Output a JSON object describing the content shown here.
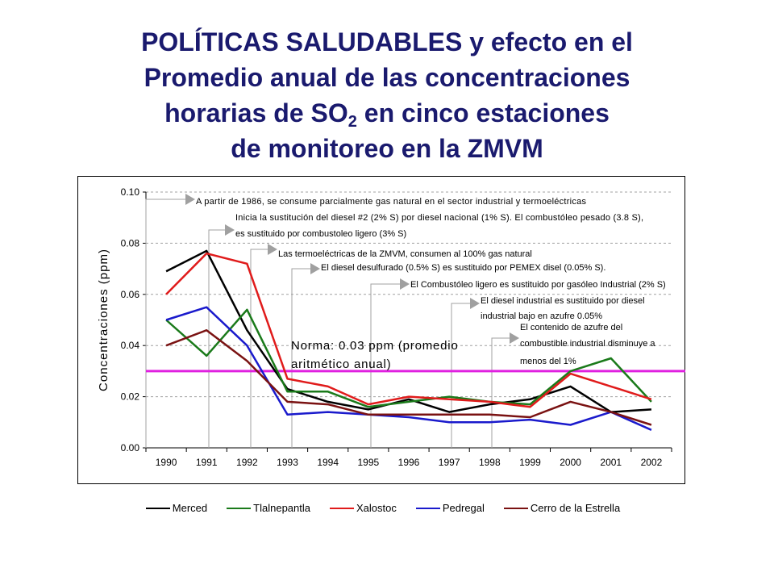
{
  "title": {
    "line1": "POLÍTICAS SALUDABLES y efecto en el",
    "line2": "Promedio anual de las concentraciones",
    "line3_pre": "horarias de SO",
    "line3_sub": "2",
    "line3_post": " en cinco estaciones",
    "line4": "de monitoreo en la ZMVM"
  },
  "chart_data": {
    "type": "line",
    "categories": [
      "1990",
      "1991",
      "1992",
      "1993",
      "1994",
      "1995",
      "1996",
      "1997",
      "1998",
      "1999",
      "2000",
      "2001",
      "2002"
    ],
    "ylabel": "Concentraciones (ppm)",
    "ylim": [
      0,
      0.1
    ],
    "yticks": [
      "0.00",
      "0.02",
      "0.04",
      "0.06",
      "0.08",
      "0.10"
    ],
    "grid": true,
    "legend_position": "bottom",
    "series": [
      {
        "name": "Merced",
        "color": "#000000",
        "values": [
          0.069,
          0.077,
          0.046,
          0.023,
          0.018,
          0.015,
          0.019,
          0.014,
          0.017,
          0.019,
          0.024,
          0.014,
          0.015
        ]
      },
      {
        "name": "Tlalnepantla",
        "color": "#1a7a1a",
        "values": [
          0.05,
          0.036,
          0.054,
          0.022,
          0.022,
          0.016,
          0.018,
          0.02,
          0.018,
          0.017,
          0.03,
          0.035,
          0.018
        ]
      },
      {
        "name": "Xalostoc",
        "color": "#e01b1b",
        "values": [
          0.06,
          0.076,
          0.072,
          0.027,
          0.024,
          0.017,
          0.02,
          0.019,
          0.018,
          0.016,
          0.029,
          0.024,
          0.019
        ]
      },
      {
        "name": "Pedregal",
        "color": "#1a1acc",
        "values": [
          0.05,
          0.055,
          0.04,
          0.013,
          0.014,
          0.013,
          0.012,
          0.01,
          0.01,
          0.011,
          0.009,
          0.014,
          0.007
        ]
      },
      {
        "name": "Cerro de la Estrella",
        "color": "#7a1212",
        "values": [
          0.04,
          0.046,
          0.034,
          0.018,
          0.017,
          0.013,
          0.013,
          0.013,
          0.013,
          0.012,
          0.018,
          0.014,
          0.009
        ]
      }
    ],
    "norm": {
      "value": 0.03,
      "color": "#e020e0",
      "label_line1": "Norma: 0.03 ppm (promedio",
      "label_line2": "aritmético anual)"
    },
    "annotations": [
      {
        "year": "1986",
        "lines": [
          "A partir de 1986, se consume parcialmente gas natural en el sector industrial y termoeléctricas"
        ]
      },
      {
        "year": "1991",
        "lines": [
          "Inicia la sustitución del diesel #2 (2% S) por diesel nacional (1% S). El combustóleo pesado (3.8 S),",
          "es sustituido por combustoleo ligero (3% S)"
        ]
      },
      {
        "year": "1992",
        "lines": [
          "Las termoeléctricas de la ZMVM, consumen al 100% gas natural"
        ]
      },
      {
        "year": "1993",
        "lines": [
          "El diesel desulfurado (0.5% S) es sustituido por PEMEX disel (0.05% S)."
        ]
      },
      {
        "year": "1995",
        "lines": [
          "El Combustóleo ligero es sustituido por gasóleo Industrial (2% S)"
        ]
      },
      {
        "year": "1997",
        "lines": [
          "El diesel industrial es sustituido por diesel",
          "industrial bajo en azufre 0.05%"
        ]
      },
      {
        "year": "1998",
        "lines": [
          "El contenido de azufre del",
          "combustible industrial disminuye a",
          "menos del 1%"
        ]
      }
    ]
  }
}
